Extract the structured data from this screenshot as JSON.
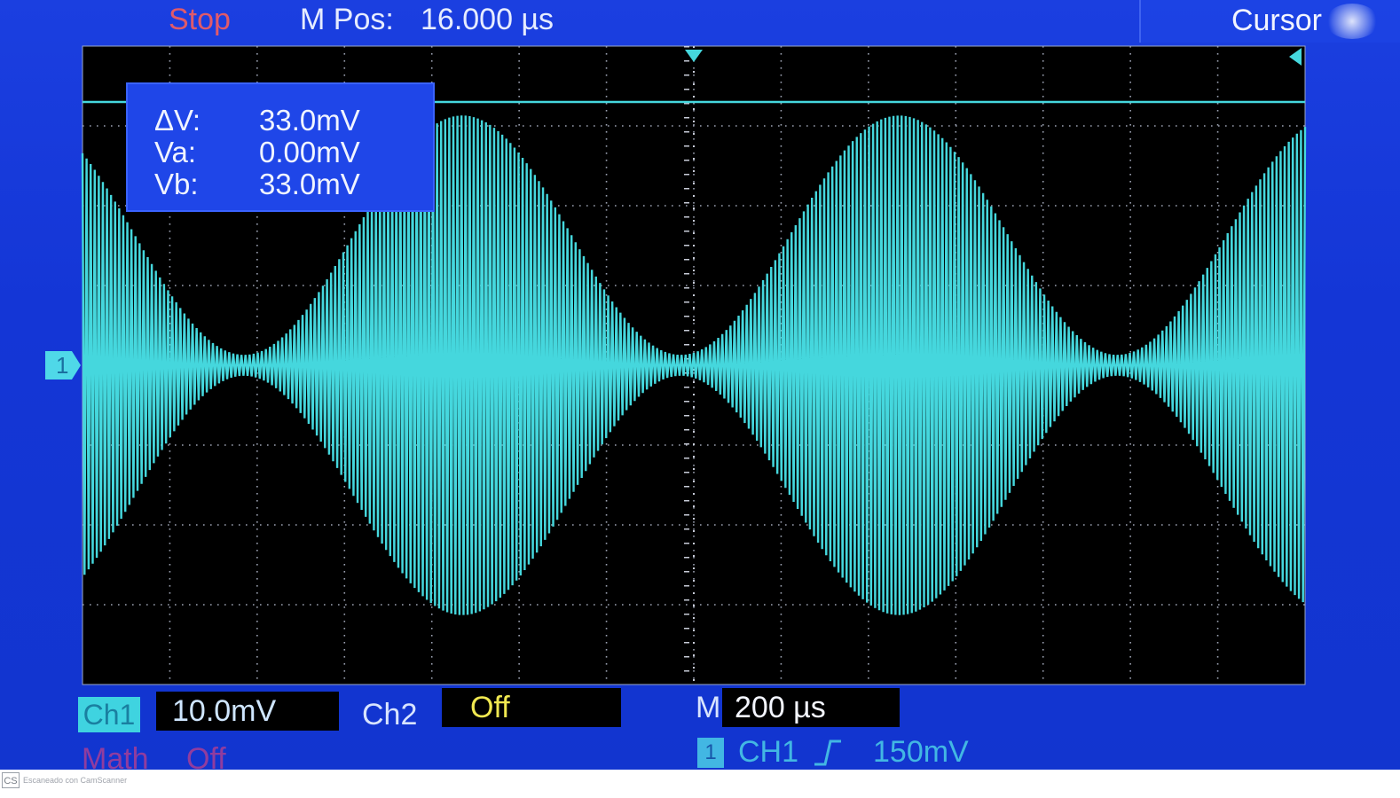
{
  "header": {
    "status": "Stop",
    "mpos_label": "M Pos:",
    "mpos_value": "16.000 µs",
    "menu_label": "Cursor"
  },
  "cursor_readout": {
    "delta_v_label": "ΔV:",
    "delta_v_value": "33.0mV",
    "va_label": "Va:",
    "va_value": "0.00mV",
    "vb_label": "Vb:",
    "vb_value": "33.0mV"
  },
  "channel_marker": "1",
  "status_bar": {
    "ch1_label": "Ch1",
    "ch1_scale": "10.0mV",
    "ch2_label": "Ch2",
    "ch2_value": "Off",
    "timebase_label": "M",
    "timebase_value": "200 µs",
    "math_label": "Math",
    "math_value": "Off",
    "trigger_badge": "1",
    "trigger_source": "CH1",
    "trigger_edge": "rising",
    "trigger_level": "150mV"
  },
  "footer": {
    "logo_text": "CS",
    "scanner_text": "Escaneado con CamScanner"
  },
  "colors": {
    "background": "#1436d6",
    "grid_background": "#000000",
    "trace": "#45d7dd",
    "status_text": "#e05a6a",
    "ch2_value": "#f0e850"
  },
  "chart_data": {
    "type": "line",
    "title": "",
    "xlabel": "",
    "ylabel": "",
    "description_signal": "amplitude-modulated carrier",
    "x_divisions": 14,
    "y_divisions": 8,
    "x_range_div": [
      -7,
      7
    ],
    "y_range_div": [
      -4,
      4
    ],
    "envelope_max_div": 3.13,
    "envelope_min_div": 0.13,
    "envelope_period_div": 5.0,
    "envelope_peak_at_div": -2.65,
    "carrier_cycles_visible": 300,
    "cursor_a_div": 0.0,
    "cursor_b_div": 3.3
  }
}
